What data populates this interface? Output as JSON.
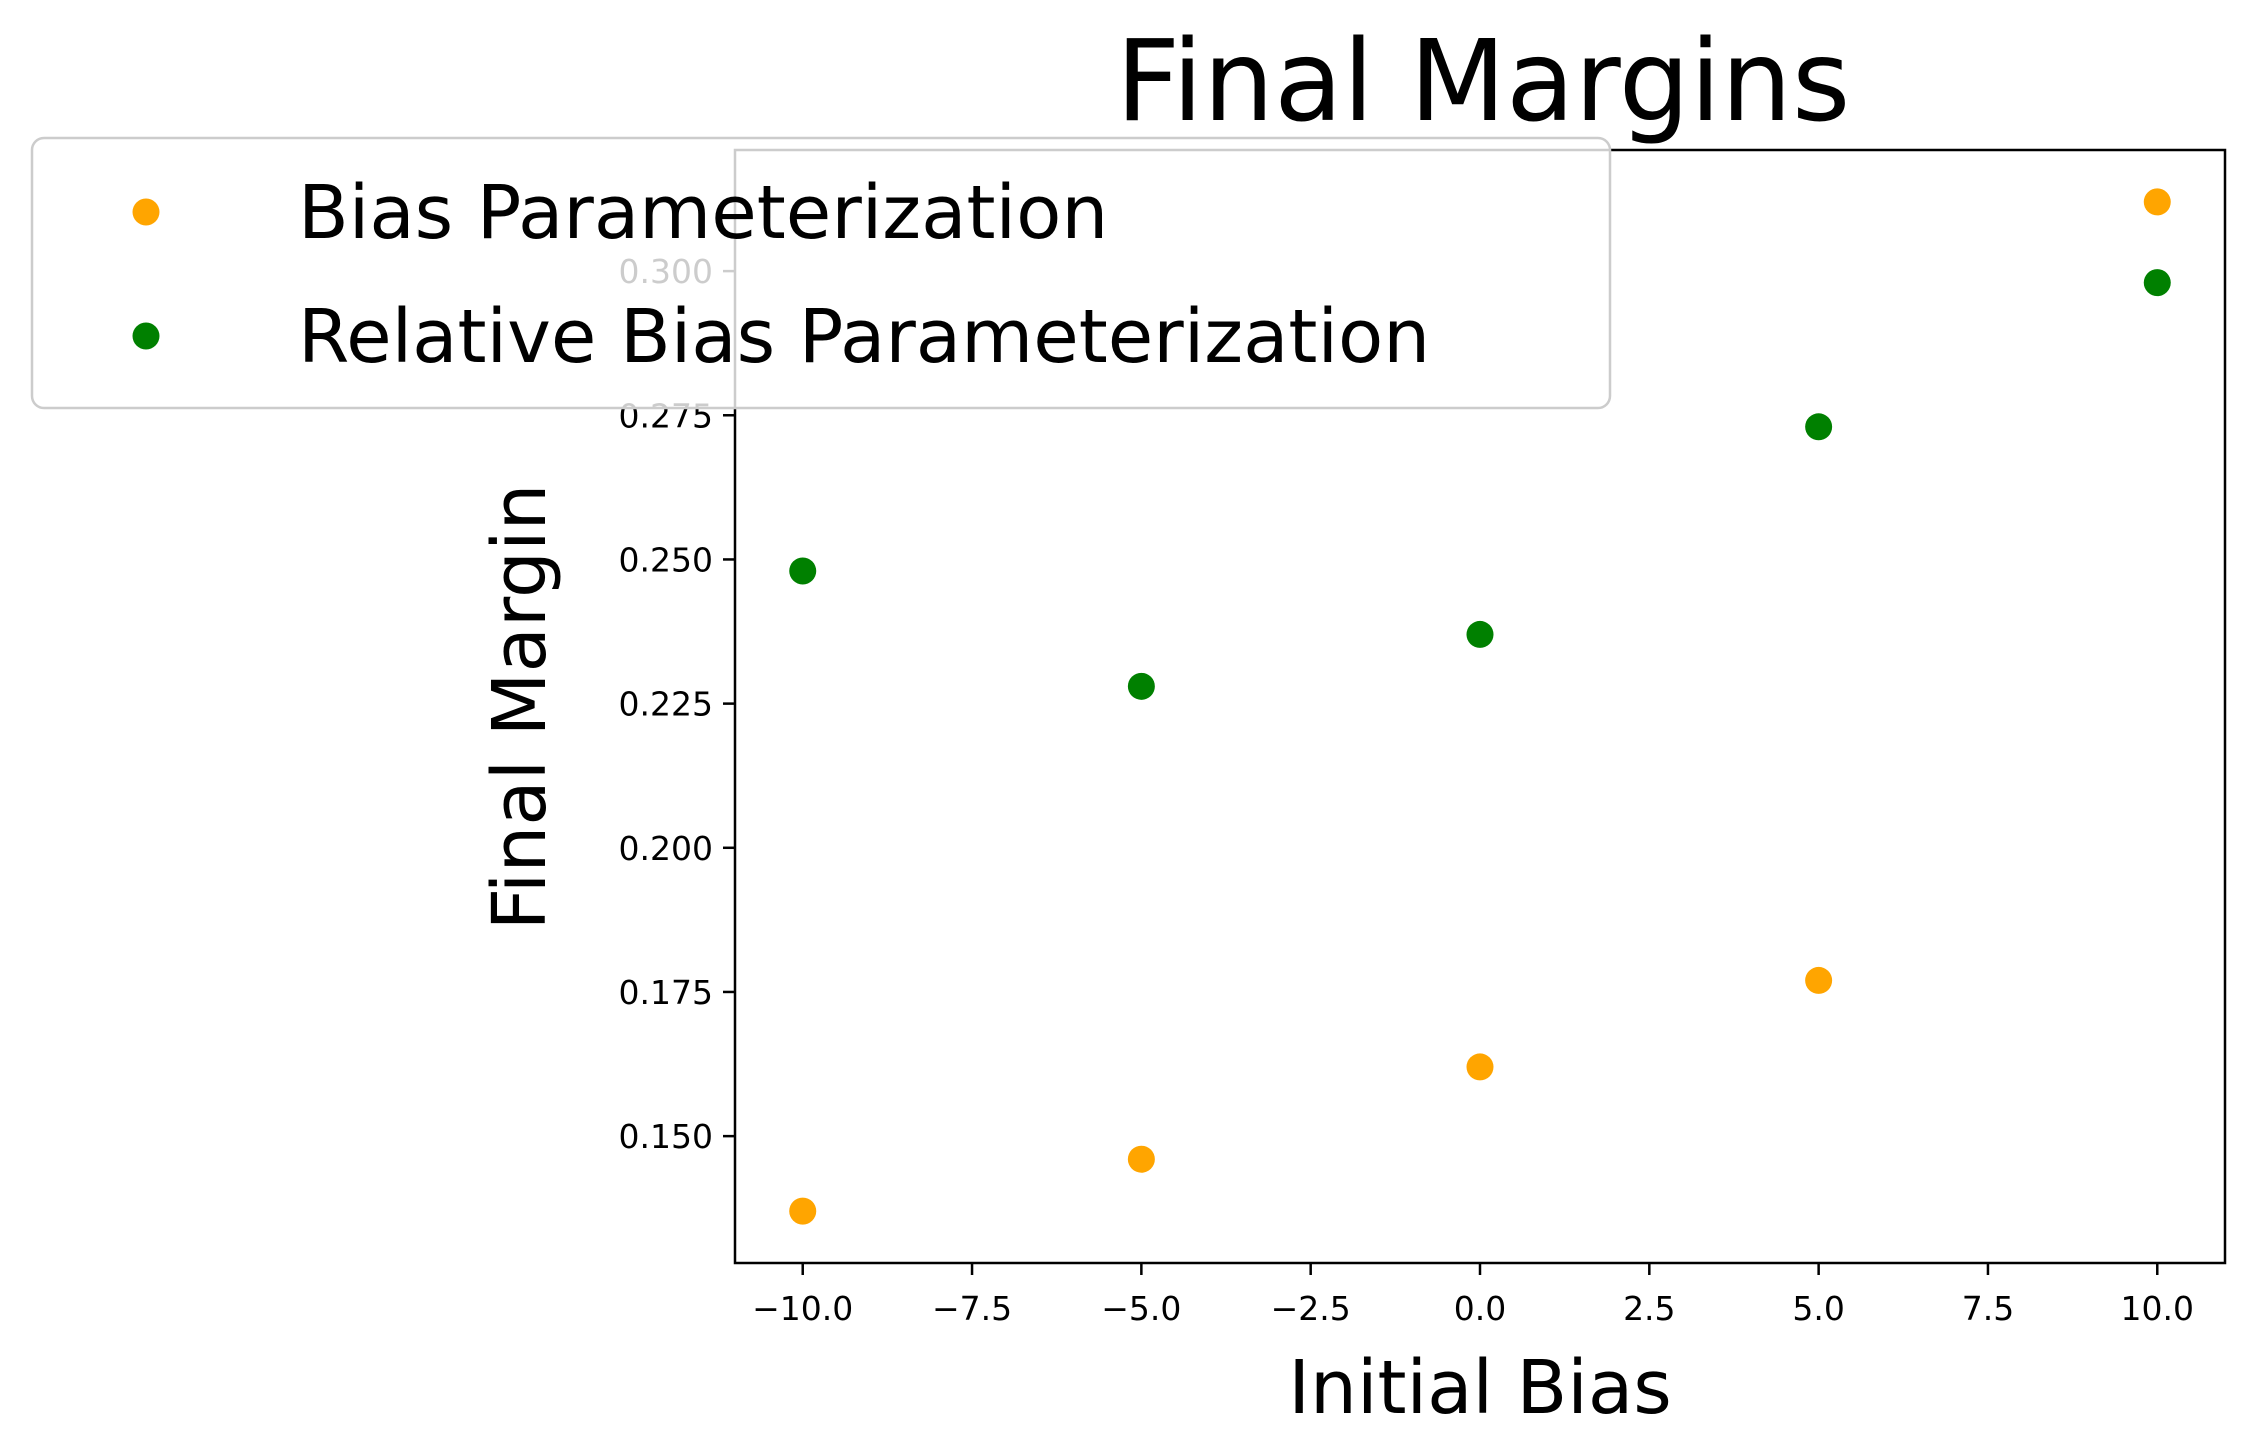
{
  "chart_data": {
    "type": "scatter",
    "title": "Final Margins",
    "xlabel": "Initial Bias",
    "ylabel": "Final Margin",
    "xlim": [
      -11,
      11
    ],
    "ylim": [
      0.128,
      0.321
    ],
    "xticks": [
      -10.0,
      -7.5,
      -5.0,
      -2.5,
      0.0,
      2.5,
      5.0,
      7.5,
      10.0
    ],
    "xtick_labels": [
      "−10.0",
      "−7.5",
      "−5.0",
      "−2.5",
      "0.0",
      "2.5",
      "5.0",
      "7.5",
      "10.0"
    ],
    "yticks": [
      0.15,
      0.175,
      0.2,
      0.225,
      0.25,
      0.275,
      0.3
    ],
    "ytick_labels": [
      "0.150",
      "0.175",
      "0.200",
      "0.225",
      "0.250",
      "0.275",
      "0.300"
    ],
    "grid": false,
    "legend_position": "top-left",
    "series": [
      {
        "name": "Bias Parameterization",
        "color": "#ffa500",
        "x": [
          -10,
          -5,
          0,
          5,
          10
        ],
        "y": [
          0.137,
          0.146,
          0.162,
          0.177,
          0.312
        ]
      },
      {
        "name": "Relative Bias Parameterization",
        "color": "#008000",
        "x": [
          -10,
          -5,
          0,
          5,
          10
        ],
        "y": [
          0.248,
          0.228,
          0.237,
          0.273,
          0.298
        ]
      }
    ]
  }
}
